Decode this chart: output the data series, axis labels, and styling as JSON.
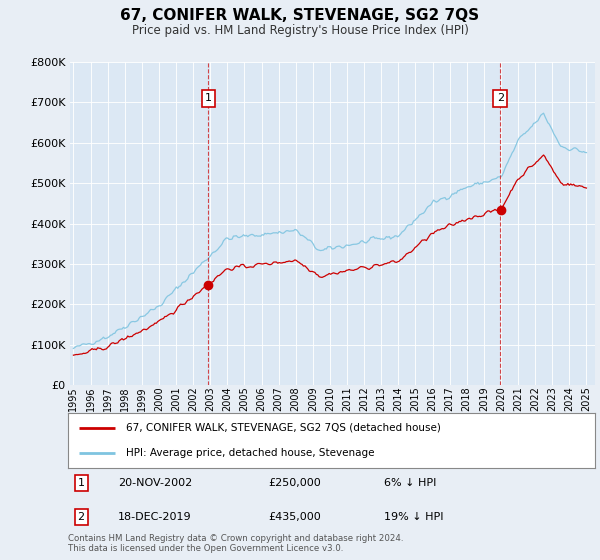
{
  "title": "67, CONIFER WALK, STEVENAGE, SG2 7QS",
  "subtitle": "Price paid vs. HM Land Registry's House Price Index (HPI)",
  "background_color": "#e8eef5",
  "plot_bg_color": "#dce8f4",
  "transaction1": {
    "date": "20-NOV-2002",
    "price": 250000,
    "year": 2002.89,
    "label": "1",
    "pct": "6% ↓ HPI"
  },
  "transaction2": {
    "date": "18-DEC-2019",
    "price": 435000,
    "year": 2019.96,
    "label": "2",
    "pct": "19% ↓ HPI"
  },
  "legend_line1": "67, CONIFER WALK, STEVENAGE, SG2 7QS (detached house)",
  "legend_line2": "HPI: Average price, detached house, Stevenage",
  "footer": "Contains HM Land Registry data © Crown copyright and database right 2024.\nThis data is licensed under the Open Government Licence v3.0.",
  "red_color": "#cc0000",
  "blue_color": "#7fc4e0",
  "ylim": [
    0,
    800000
  ],
  "yticks": [
    0,
    100000,
    200000,
    300000,
    400000,
    500000,
    600000,
    700000,
    800000
  ],
  "xlim_start": 1994.8,
  "xlim_end": 2025.5,
  "xticks": [
    1995,
    1996,
    1997,
    1998,
    1999,
    2000,
    2001,
    2002,
    2003,
    2004,
    2005,
    2006,
    2007,
    2008,
    2009,
    2010,
    2011,
    2012,
    2013,
    2014,
    2015,
    2016,
    2017,
    2018,
    2019,
    2020,
    2021,
    2022,
    2023,
    2024,
    2025
  ]
}
